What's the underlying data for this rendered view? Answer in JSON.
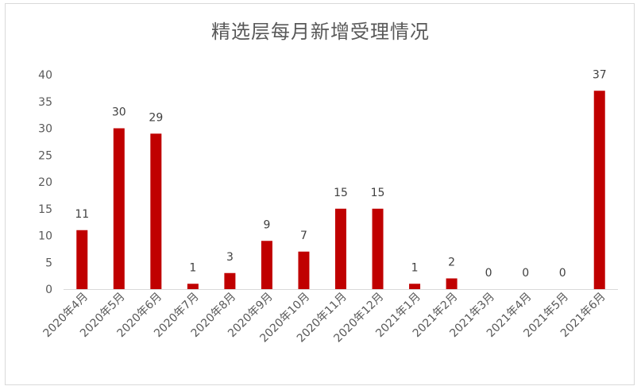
{
  "chart_data": {
    "type": "bar",
    "title": "精选层每月新增受理情况",
    "categories": [
      "2020年4月",
      "2020年5月",
      "2020年6月",
      "2020年7月",
      "2020年8月",
      "2020年9月",
      "2020年10月",
      "2020年11月",
      "2020年12月",
      "2021年1月",
      "2021年2月",
      "2021年3月",
      "2021年4月",
      "2021年5月",
      "2021年6月"
    ],
    "values": [
      11,
      30,
      29,
      1,
      3,
      9,
      7,
      15,
      15,
      1,
      2,
      0,
      0,
      0,
      37
    ],
    "ylim": [
      0,
      40
    ],
    "yticks": [
      0,
      5,
      10,
      15,
      20,
      25,
      30,
      35,
      40
    ],
    "xlabel": "",
    "ylabel": "",
    "grid": false,
    "legend": "none",
    "bar_color": "#c00000",
    "data_labels": true
  }
}
